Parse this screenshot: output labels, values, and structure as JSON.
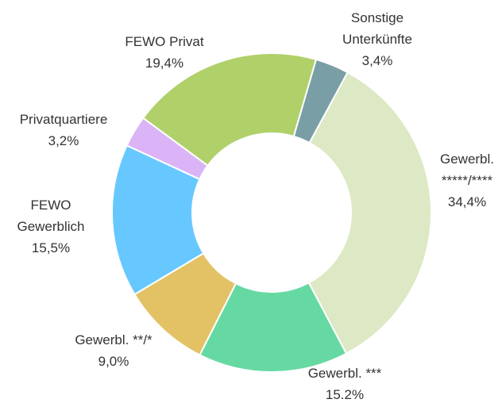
{
  "chart_data": {
    "type": "donut",
    "categories": [
      "Gewerbl.\n*****/****",
      "Gewerbl. ***",
      "Gewerbl. **/*",
      "FEWO\nGewerblich",
      "Privatquartiere",
      "FEWO Privat",
      "Sonstige\nUnterkünfte"
    ],
    "values": [
      34.4,
      15.2,
      9.0,
      15.5,
      3.2,
      19.4,
      3.4
    ],
    "value_labels": [
      "34,4%",
      "15.2%",
      "9,0%",
      "15,5%",
      "3,2%",
      "19,4%",
      "3,4%"
    ],
    "colors": [
      "#dde8c4",
      "#66d9a3",
      "#e2c264",
      "#66c8ff",
      "#dbb4f7",
      "#b0d06a",
      "#7a9ea6"
    ]
  }
}
